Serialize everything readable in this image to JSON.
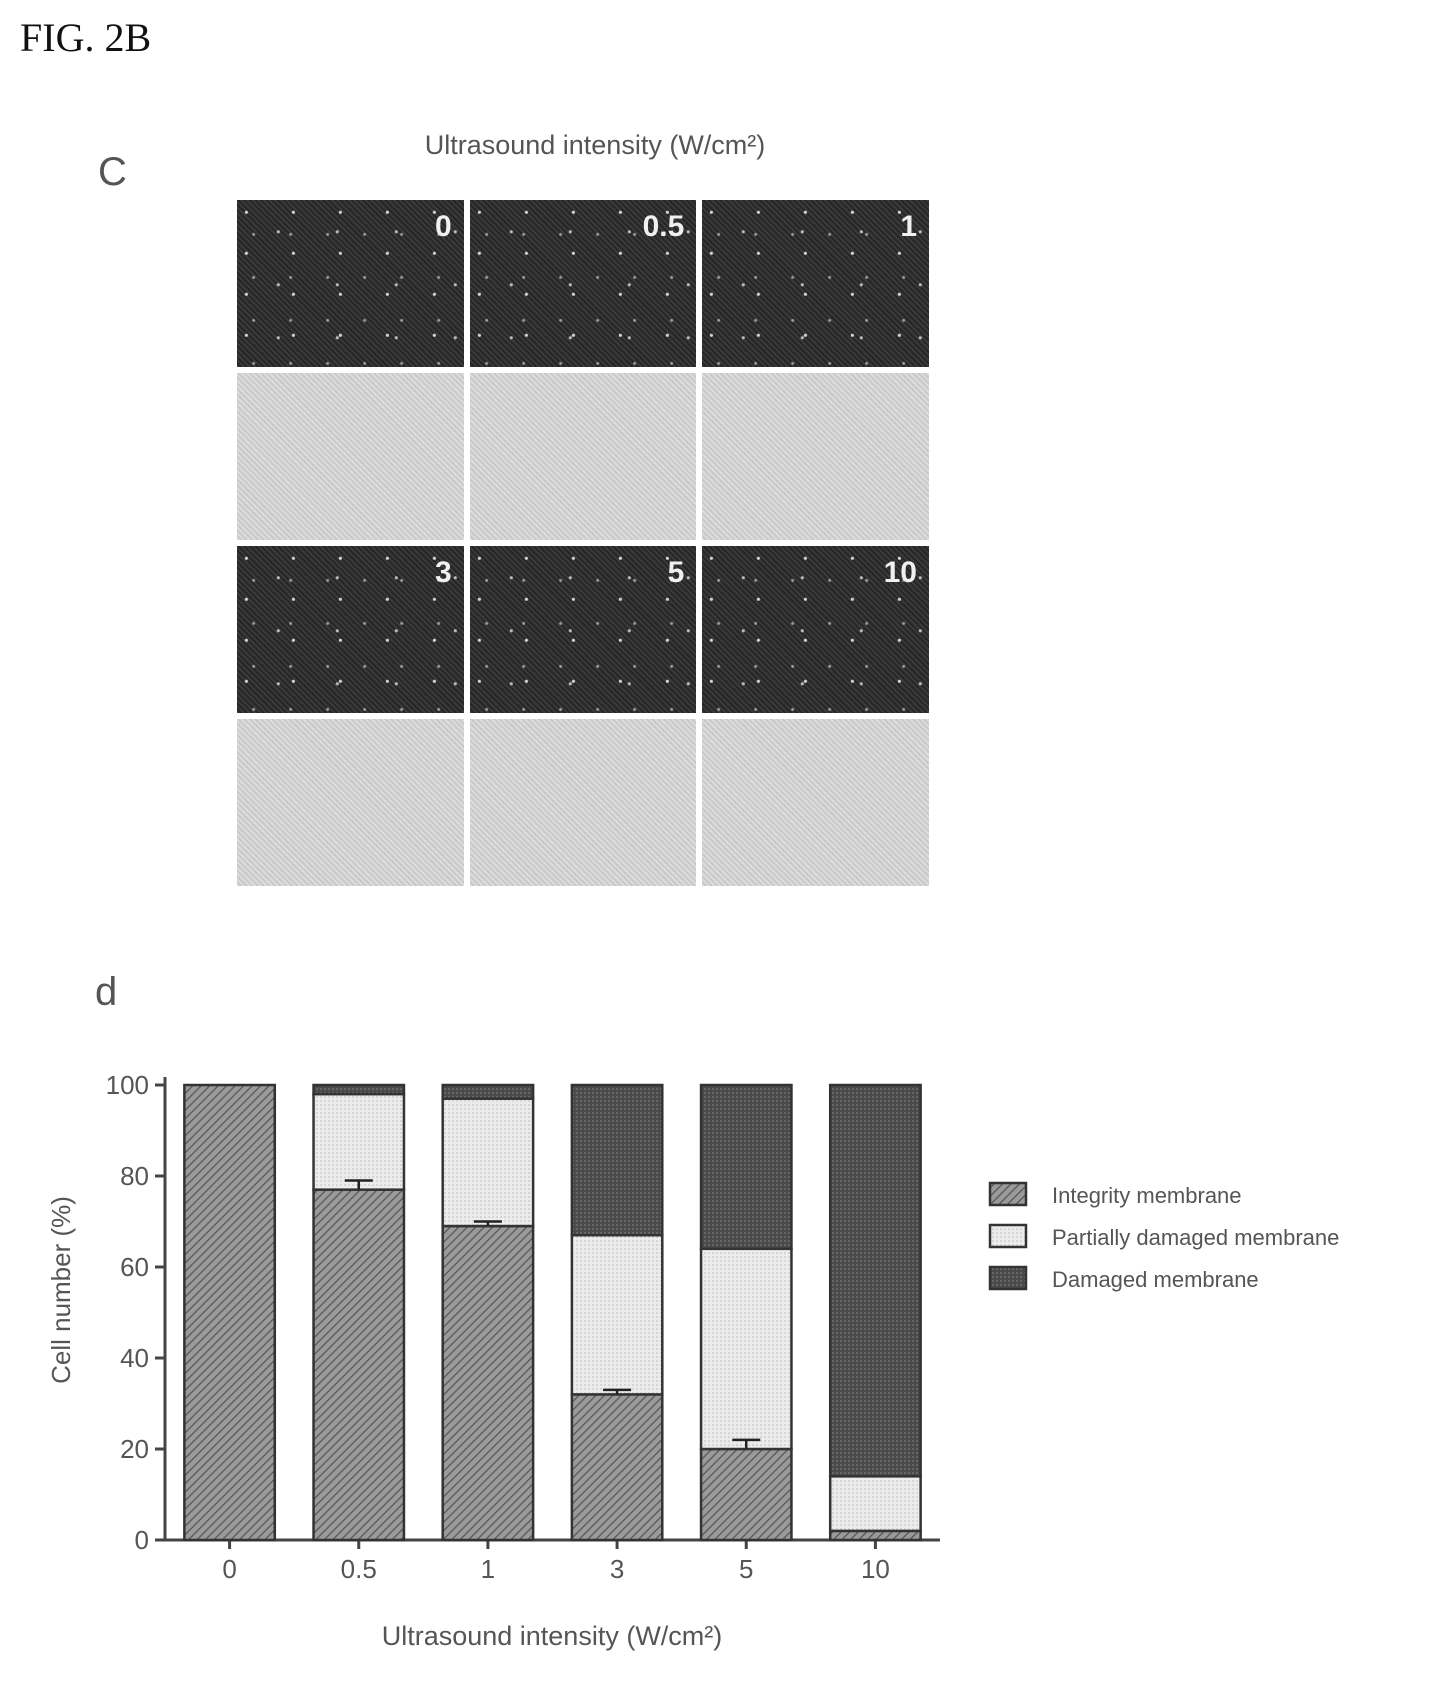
{
  "figure_label": "FIG. 2B",
  "panel_c": {
    "letter": "C",
    "title": "Ultrasound intensity (W/cm²)",
    "image_labels": [
      "0",
      "0.5",
      "1",
      "3",
      "5",
      "10"
    ]
  },
  "panel_d": {
    "letter": "d"
  },
  "colors": {
    "integrity": "#7a7a7a",
    "partially": "#e4e4e4",
    "damaged": "#444444"
  },
  "chart_data": {
    "type": "bar",
    "stacked": true,
    "categories": [
      "0",
      "0.5",
      "1",
      "3",
      "5",
      "10"
    ],
    "series": [
      {
        "name": "Integrity membrane",
        "values": [
          100,
          77,
          69,
          32,
          20,
          2
        ]
      },
      {
        "name": "Partially damaged membrane",
        "values": [
          0,
          21,
          28,
          35,
          44,
          12
        ]
      },
      {
        "name": "Damaged membrane",
        "values": [
          0,
          2,
          3,
          33,
          36,
          86
        ]
      }
    ],
    "error_bars": {
      "series": "Integrity membrane",
      "values": [
        0,
        2,
        1,
        1,
        2,
        0
      ]
    },
    "xlabel": "Ultrasound intensity (W/cm²)",
    "ylabel": "Cell number (%)",
    "ylim": [
      0,
      100
    ],
    "yticks": [
      0,
      20,
      40,
      60,
      80,
      100
    ],
    "legend_position": "right"
  }
}
